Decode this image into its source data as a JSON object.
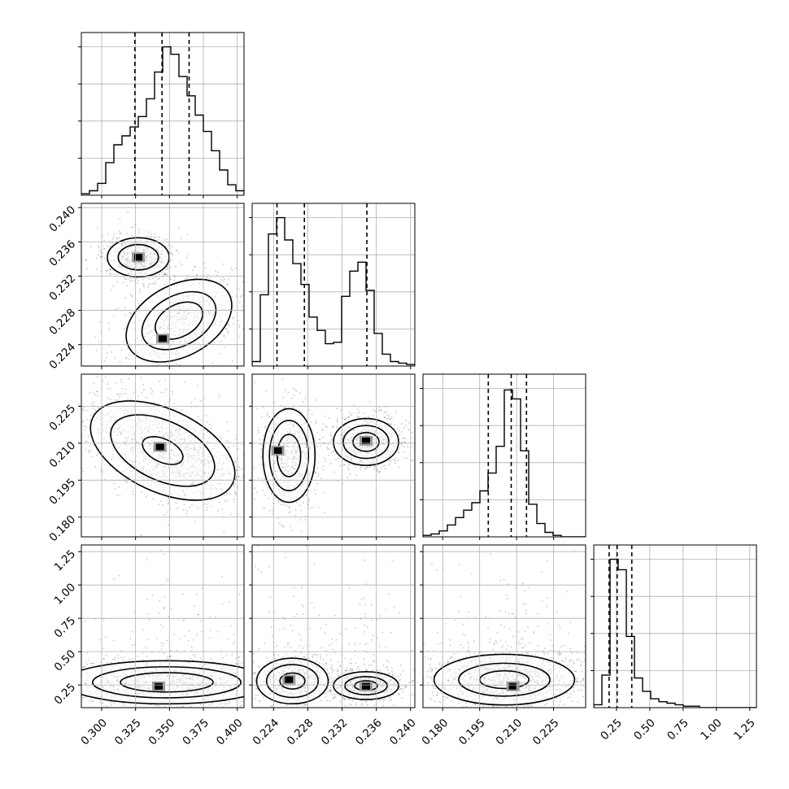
{
  "chart_data": {
    "type": "corner",
    "dimensions": [
      {
        "key": "p0",
        "range": [
          0.285,
          0.405
        ],
        "ticks": [
          0.3,
          0.325,
          0.35,
          0.375,
          0.4
        ],
        "tick_labels": [
          "0.300",
          "0.325",
          "0.350",
          "0.375",
          "0.400"
        ],
        "quantiles": [
          0.3245,
          0.3445,
          0.3645
        ],
        "peaks": [
          [
            0.345,
            1.0
          ]
        ],
        "bimodal": false
      },
      {
        "key": "p1",
        "range": [
          0.2215,
          0.2405
        ],
        "ticks": [
          0.224,
          0.228,
          0.232,
          0.236,
          0.24
        ],
        "tick_labels": [
          "0.224",
          "0.228",
          "0.232",
          "0.236",
          "0.240"
        ],
        "quantiles": [
          0.2244,
          0.2276,
          0.2349
        ],
        "peaks": [
          [
            0.2248,
            1.0
          ],
          [
            0.2346,
            0.72
          ]
        ],
        "bimodal": true
      },
      {
        "key": "p2",
        "range": [
          0.172,
          0.238
        ],
        "ticks": [
          0.18,
          0.195,
          0.21,
          0.225
        ],
        "tick_labels": [
          "0.180",
          "0.195",
          "0.210",
          "0.225"
        ],
        "quantiles": [
          0.1985,
          0.2078,
          0.214
        ],
        "peaks": [
          [
            0.2085,
            1.0
          ]
        ],
        "bimodal": false
      },
      {
        "key": "p3",
        "range": [
          0.08,
          1.3
        ],
        "ticks": [
          0.25,
          0.5,
          0.75,
          1.0,
          1.25
        ],
        "tick_labels": [
          "0.25",
          "0.50",
          "0.75",
          "1.00",
          "1.25"
        ],
        "quantiles": [
          0.195,
          0.255,
          0.365
        ],
        "peaks": [
          [
            0.24,
            1.0
          ]
        ],
        "bimodal": false
      }
    ],
    "histograms": [
      {
        "dim": 0,
        "bins": [
          0.286,
          0.291,
          0.297,
          0.303,
          0.309,
          0.315,
          0.321,
          0.327,
          0.333,
          0.339,
          0.345,
          0.351,
          0.357,
          0.363,
          0.369,
          0.375,
          0.381,
          0.387,
          0.393,
          0.399
        ],
        "counts": [
          0.01,
          0.03,
          0.08,
          0.22,
          0.34,
          0.4,
          0.46,
          0.53,
          0.65,
          0.83,
          1.0,
          0.95,
          0.8,
          0.67,
          0.54,
          0.43,
          0.3,
          0.17,
          0.07,
          0.03
        ]
      },
      {
        "dim": 1,
        "bins": [
          0.2215,
          0.2225,
          0.2234,
          0.2244,
          0.2253,
          0.2263,
          0.2272,
          0.2282,
          0.2291,
          0.2301,
          0.231,
          0.232,
          0.2329,
          0.2339,
          0.2348,
          0.2358,
          0.2367,
          0.2377,
          0.2386,
          0.2396
        ],
        "counts": [
          0.03,
          0.48,
          0.89,
          1.0,
          0.85,
          0.69,
          0.55,
          0.33,
          0.24,
          0.15,
          0.16,
          0.47,
          0.64,
          0.7,
          0.51,
          0.22,
          0.08,
          0.03,
          0.02,
          0.01
        ]
      },
      {
        "dim": 2,
        "bins": [
          0.172,
          0.1753,
          0.1786,
          0.1819,
          0.1852,
          0.1885,
          0.1918,
          0.1951,
          0.1984,
          0.2017,
          0.205,
          0.2083,
          0.2116,
          0.2149,
          0.2182,
          0.2215,
          0.2248,
          0.2281,
          0.2314,
          0.2347
        ],
        "counts": [
          0.01,
          0.02,
          0.04,
          0.08,
          0.13,
          0.18,
          0.23,
          0.31,
          0.43,
          0.61,
          0.99,
          0.93,
          0.58,
          0.22,
          0.09,
          0.03,
          0.01,
          0.0,
          0.0,
          0.0
        ]
      },
      {
        "dim": 3,
        "bins": [
          0.08,
          0.141,
          0.202,
          0.263,
          0.324,
          0.385,
          0.446,
          0.507,
          0.568,
          0.629,
          0.69,
          0.751,
          0.812,
          0.873,
          0.934,
          0.995,
          1.056,
          1.117,
          1.178,
          1.239
        ],
        "counts": [
          0.02,
          0.22,
          1.0,
          0.93,
          0.48,
          0.2,
          0.11,
          0.06,
          0.04,
          0.03,
          0.02,
          0.01,
          0.01,
          0.0,
          0.0,
          0.0,
          0.0,
          0.0,
          0.0,
          0.0
        ]
      }
    ],
    "density_panels": [
      {
        "x_dim": 0,
        "y_dim": 1,
        "clusters": [
          {
            "center": [
              0.327,
              0.2342
            ],
            "spread": [
              0.012,
              0.0012
            ],
            "tilt": 0,
            "levels": [
              1.0,
              0.65,
              0.02
            ],
            "core": [
              0.327,
              0.2342
            ]
          },
          {
            "center": [
              0.357,
              0.2268
            ],
            "spread": [
              0.022,
              0.0022
            ],
            "tilt": -28,
            "levels": [
              1.0,
              0.7,
              0.45
            ],
            "core": [
              0.345,
              0.2247
            ]
          }
        ]
      },
      {
        "x_dim": 0,
        "y_dim": 2,
        "clusters": [
          {
            "center": [
              0.345,
              0.207
            ],
            "spread": [
              0.03,
              0.0088
            ],
            "tilt": 25,
            "levels": [
              1.0,
              0.72,
              0.28
            ],
            "core": [
              0.343,
              0.2085
            ]
          }
        ]
      },
      {
        "x_dim": 1,
        "y_dim": 2,
        "clusters": [
          {
            "center": [
              0.2258,
              0.205
            ],
            "spread": [
              0.0016,
              0.01
            ],
            "tilt": 0,
            "levels": [
              1.0,
              0.75,
              0.45
            ],
            "core": [
              0.2245,
              0.207
            ]
          },
          {
            "center": [
              0.2348,
              0.2105
            ],
            "spread": [
              0.002,
              0.005
            ],
            "tilt": 0,
            "levels": [
              1.0,
              0.7,
              0.4
            ],
            "core": [
              0.2348,
              0.211
            ]
          }
        ]
      },
      {
        "x_dim": 0,
        "y_dim": 3,
        "clusters": [
          {
            "center": [
              0.348,
              0.27
            ],
            "spread": [
              0.04,
              0.085
            ],
            "tilt": 0,
            "levels": [
              1.0,
              0.72,
              0.45
            ],
            "core": [
              0.342,
              0.24
            ]
          }
        ]
      },
      {
        "x_dim": 1,
        "y_dim": 3,
        "clusters": [
          {
            "center": [
              0.2262,
              0.28
            ],
            "spread": [
              0.0022,
              0.09
            ],
            "tilt": 0,
            "levels": [
              1.0,
              0.72,
              0.35
            ],
            "core": [
              0.2258,
              0.29
            ]
          },
          {
            "center": [
              0.2348,
              0.245
            ],
            "spread": [
              0.002,
              0.055
            ],
            "tilt": 0,
            "levels": [
              1.0,
              0.65,
              0.35
            ],
            "core": [
              0.2348,
              0.24
            ]
          }
        ]
      },
      {
        "x_dim": 2,
        "y_dim": 3,
        "clusters": [
          {
            "center": [
              0.205,
              0.29
            ],
            "spread": [
              0.015,
              0.1
            ],
            "tilt": 0,
            "levels": [
              1.0,
              0.65,
              0.35
            ],
            "core": [
              0.2085,
              0.24
            ]
          }
        ]
      }
    ],
    "grid": true,
    "scatter_points_per_panel": 1400
  }
}
